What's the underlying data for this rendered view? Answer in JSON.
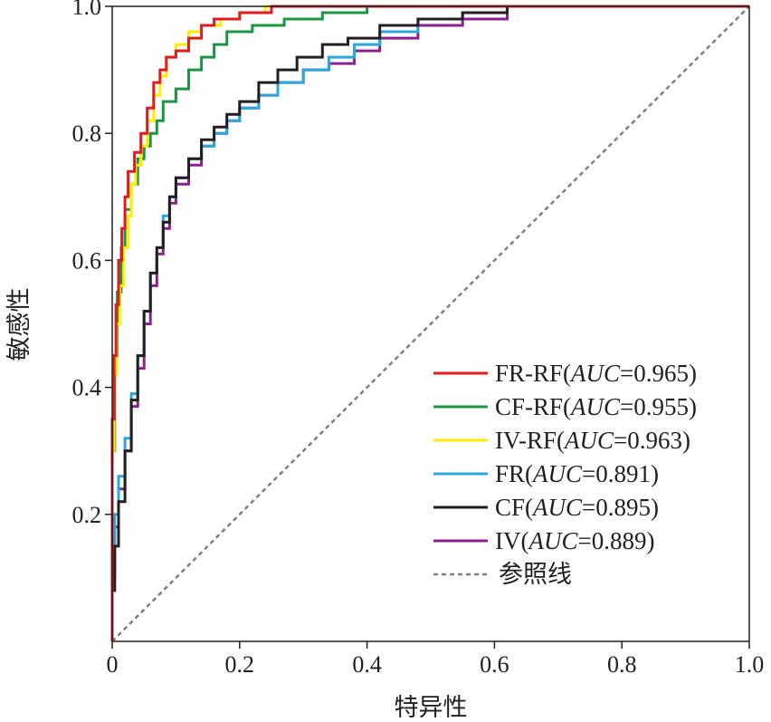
{
  "chart_data": {
    "type": "line",
    "xlabel": "特异性",
    "ylabel": "敏感性",
    "xlim": [
      0,
      1
    ],
    "ylim": [
      0,
      1
    ],
    "x_ticks": [
      "0",
      "0.2",
      "0.4",
      "0.6",
      "0.8",
      "1.0"
    ],
    "y_ticks": [
      "0.2",
      "0.4",
      "0.6",
      "0.8",
      "1.0"
    ],
    "grid": false,
    "legend_position": "bottom-right",
    "series": [
      {
        "name": "FR-RF",
        "auc_label": "AUC",
        "auc_value": "=0.965)",
        "color": "#e31a1c",
        "points": [
          [
            0,
            0
          ],
          [
            0.003,
            0.35
          ],
          [
            0.006,
            0.45
          ],
          [
            0.01,
            0.53
          ],
          [
            0.015,
            0.6
          ],
          [
            0.02,
            0.65
          ],
          [
            0.025,
            0.7
          ],
          [
            0.035,
            0.74
          ],
          [
            0.045,
            0.77
          ],
          [
            0.055,
            0.8
          ],
          [
            0.065,
            0.84
          ],
          [
            0.075,
            0.88
          ],
          [
            0.085,
            0.9
          ],
          [
            0.1,
            0.92
          ],
          [
            0.12,
            0.93
          ],
          [
            0.14,
            0.95
          ],
          [
            0.16,
            0.97
          ],
          [
            0.2,
            0.98
          ],
          [
            0.25,
            0.99
          ],
          [
            0.3,
            1.0
          ],
          [
            1.0,
            1.0
          ]
        ]
      },
      {
        "name": "CF-RF",
        "auc_label": "AUC",
        "auc_value": "=0.955)",
        "color": "#1a9641",
        "points": [
          [
            0,
            0
          ],
          [
            0.004,
            0.3
          ],
          [
            0.008,
            0.45
          ],
          [
            0.014,
            0.55
          ],
          [
            0.02,
            0.62
          ],
          [
            0.03,
            0.68
          ],
          [
            0.04,
            0.72
          ],
          [
            0.05,
            0.76
          ],
          [
            0.06,
            0.78
          ],
          [
            0.07,
            0.8
          ],
          [
            0.08,
            0.82
          ],
          [
            0.1,
            0.85
          ],
          [
            0.12,
            0.87
          ],
          [
            0.14,
            0.9
          ],
          [
            0.16,
            0.92
          ],
          [
            0.18,
            0.94
          ],
          [
            0.22,
            0.96
          ],
          [
            0.27,
            0.97
          ],
          [
            0.33,
            0.98
          ],
          [
            0.4,
            0.99
          ],
          [
            0.5,
            1.0
          ],
          [
            1.0,
            1.0
          ]
        ]
      },
      {
        "name": "IV-RF",
        "auc_label": "AUC",
        "auc_value": "=0.963)",
        "color": "#ffee00",
        "points": [
          [
            0,
            0
          ],
          [
            0.003,
            0.3
          ],
          [
            0.007,
            0.42
          ],
          [
            0.012,
            0.5
          ],
          [
            0.018,
            0.56
          ],
          [
            0.025,
            0.62
          ],
          [
            0.03,
            0.67
          ],
          [
            0.037,
            0.72
          ],
          [
            0.045,
            0.75
          ],
          [
            0.055,
            0.78
          ],
          [
            0.065,
            0.82
          ],
          [
            0.075,
            0.86
          ],
          [
            0.085,
            0.89
          ],
          [
            0.1,
            0.92
          ],
          [
            0.12,
            0.94
          ],
          [
            0.14,
            0.96
          ],
          [
            0.17,
            0.97
          ],
          [
            0.2,
            0.98
          ],
          [
            0.24,
            0.99
          ],
          [
            0.28,
            1.0
          ],
          [
            1.0,
            1.0
          ]
        ]
      },
      {
        "name": "FR",
        "auc_label": "AUC",
        "auc_value": "=0.891)",
        "color": "#29a8e0",
        "points": [
          [
            0,
            0
          ],
          [
            0.004,
            0.1
          ],
          [
            0.01,
            0.2
          ],
          [
            0.02,
            0.26
          ],
          [
            0.03,
            0.32
          ],
          [
            0.04,
            0.39
          ],
          [
            0.05,
            0.45
          ],
          [
            0.06,
            0.52
          ],
          [
            0.07,
            0.58
          ],
          [
            0.08,
            0.62
          ],
          [
            0.09,
            0.67
          ],
          [
            0.1,
            0.7
          ],
          [
            0.12,
            0.73
          ],
          [
            0.14,
            0.76
          ],
          [
            0.16,
            0.78
          ],
          [
            0.18,
            0.8
          ],
          [
            0.2,
            0.82
          ],
          [
            0.23,
            0.84
          ],
          [
            0.26,
            0.86
          ],
          [
            0.3,
            0.88
          ],
          [
            0.34,
            0.9
          ],
          [
            0.38,
            0.92
          ],
          [
            0.42,
            0.94
          ],
          [
            0.48,
            0.96
          ],
          [
            0.55,
            0.98
          ],
          [
            0.62,
            0.99
          ],
          [
            0.72,
            1.0
          ],
          [
            1.0,
            1.0
          ]
        ]
      },
      {
        "name": "CF",
        "auc_label": "AUC",
        "auc_value": "=0.895)",
        "color": "#231f20",
        "points": [
          [
            0,
            0
          ],
          [
            0.004,
            0.08
          ],
          [
            0.01,
            0.15
          ],
          [
            0.02,
            0.22
          ],
          [
            0.03,
            0.3
          ],
          [
            0.04,
            0.38
          ],
          [
            0.05,
            0.45
          ],
          [
            0.06,
            0.52
          ],
          [
            0.07,
            0.58
          ],
          [
            0.08,
            0.62
          ],
          [
            0.09,
            0.66
          ],
          [
            0.1,
            0.7
          ],
          [
            0.12,
            0.73
          ],
          [
            0.14,
            0.76
          ],
          [
            0.16,
            0.79
          ],
          [
            0.18,
            0.81
          ],
          [
            0.2,
            0.83
          ],
          [
            0.23,
            0.85
          ],
          [
            0.26,
            0.88
          ],
          [
            0.29,
            0.9
          ],
          [
            0.33,
            0.92
          ],
          [
            0.37,
            0.94
          ],
          [
            0.42,
            0.95
          ],
          [
            0.48,
            0.97
          ],
          [
            0.55,
            0.98
          ],
          [
            0.62,
            0.99
          ],
          [
            0.7,
            1.0
          ],
          [
            1.0,
            1.0
          ]
        ]
      },
      {
        "name": "IV",
        "auc_label": "AUC",
        "auc_value": "=0.889)",
        "color": "#8e1f8f",
        "points": [
          [
            0,
            0
          ],
          [
            0.004,
            0.1
          ],
          [
            0.01,
            0.18
          ],
          [
            0.02,
            0.24
          ],
          [
            0.03,
            0.3
          ],
          [
            0.04,
            0.37
          ],
          [
            0.05,
            0.43
          ],
          [
            0.06,
            0.5
          ],
          [
            0.07,
            0.56
          ],
          [
            0.08,
            0.61
          ],
          [
            0.09,
            0.65
          ],
          [
            0.1,
            0.69
          ],
          [
            0.12,
            0.72
          ],
          [
            0.14,
            0.75
          ],
          [
            0.16,
            0.78
          ],
          [
            0.18,
            0.8
          ],
          [
            0.2,
            0.82
          ],
          [
            0.23,
            0.84
          ],
          [
            0.26,
            0.86
          ],
          [
            0.3,
            0.88
          ],
          [
            0.34,
            0.9
          ],
          [
            0.38,
            0.91
          ],
          [
            0.42,
            0.93
          ],
          [
            0.48,
            0.95
          ],
          [
            0.55,
            0.97
          ],
          [
            0.62,
            0.98
          ],
          [
            0.72,
            1.0
          ],
          [
            1.0,
            1.0
          ]
        ]
      }
    ],
    "reference": {
      "name": "参照线",
      "color": "#808080",
      "points": [
        [
          0,
          0
        ],
        [
          1,
          1
        ]
      ]
    }
  }
}
